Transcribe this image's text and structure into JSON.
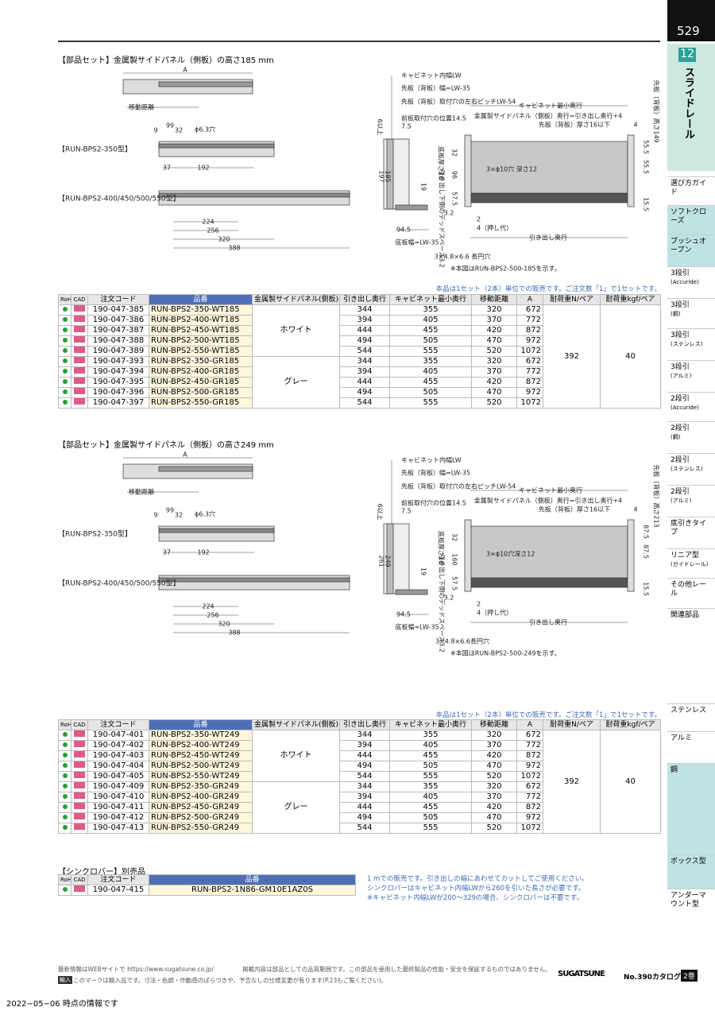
{
  "header": {
    "page_number": "529",
    "chapter": "12",
    "chapter_title": "スライドレール"
  },
  "sidebar": {
    "upper": [
      {
        "label": "選び方ガイド"
      },
      {
        "label": "ソフトクローズ"
      },
      {
        "label": "プッシュオープン"
      },
      {
        "label": "3段引",
        "sub": "(Accuride)"
      },
      {
        "label": "3段引",
        "sub": "(鋼)"
      },
      {
        "label": "3段引",
        "sub": "(ステンレス)"
      },
      {
        "label": "3段引",
        "sub": "(アルミ)"
      },
      {
        "label": "2段引",
        "sub": "(Accuride)"
      },
      {
        "label": "2段引",
        "sub": "(鋼)"
      },
      {
        "label": "2段引",
        "sub": "(ステンレス)"
      },
      {
        "label": "2段引",
        "sub": "(アルミ)"
      },
      {
        "label": "底引きタイプ"
      },
      {
        "label": "リニア型",
        "sub": "(ガイドレール)"
      },
      {
        "label": "その他レール"
      },
      {
        "label": "関連部品"
      }
    ],
    "lower": [
      {
        "label": "ステンレス"
      },
      {
        "label": "アルミ"
      },
      {
        "label": "鋼"
      },
      {
        "label": "ボックス型"
      },
      {
        "label": "アンダーマウント型"
      }
    ]
  },
  "sections": [
    {
      "title": "【部品セット】金属製サイドパネル（側板）の高さ185 mm",
      "drawing_labels": [
        "A",
        "移動距離",
        "9",
        "99",
        "32",
        "ϕ6.3穴",
        "37",
        "192",
        "224",
        "256",
        "320",
        "388",
        "【RUN-BPS2-350型】",
        "【RUN-BPS2-400/450/500/550型】",
        "キャビネット内幅LW",
        "先板（背板）幅=LW-35",
        "先板（背板）取付穴の左右ピッチLW-54",
        "前板取付穴の位置14.5",
        "7.5",
        "6以上",
        "キャビネット最小奥行",
        "金属製サイドパネル（側板）奥行=引き出し奥行+4",
        "先板（背板）厚さ16以下",
        "4",
        "先板（背板）高さ149",
        "55.5",
        "55.5",
        "15.5",
        "3×ϕ10穴 深さ12",
        "底板厚さ16",
        "32",
        "96",
        "57.5",
        "3.2",
        "19",
        "197",
        "185",
        "94.5",
        "底板幅=LW-35",
        "引き出し下側のデッドスペース3.2",
        "2",
        "4（押し代）",
        "引き出し奥行",
        "3×4.8×6.6 長円穴",
        "※本図はRUN-BPS2-500-185を示す。"
      ],
      "sale_note": "本品は1セット（2本）単位での販売です。ご注文数「1」で1セットです。",
      "table": {
        "columns": [
          "RoHS",
          "CAD",
          "注文コード",
          "品番",
          "金属製サイドパネル(側板)の色",
          "引き出し奥行",
          "キャビネット最小奥行",
          "移動距離",
          "A",
          "耐荷重N/ペア",
          "耐荷重kgf/ペア"
        ],
        "colors": [
          "ホワイト",
          "グレー"
        ],
        "load_n": 392,
        "load_kgf": 40,
        "rows": [
          [
            "190-047-385",
            "RUN-BPS2-350-WT185",
            344,
            355,
            320,
            672
          ],
          [
            "190-047-386",
            "RUN-BPS2-400-WT185",
            394,
            405,
            370,
            772
          ],
          [
            "190-047-387",
            "RUN-BPS2-450-WT185",
            444,
            455,
            420,
            872
          ],
          [
            "190-047-388",
            "RUN-BPS2-500-WT185",
            494,
            505,
            470,
            972
          ],
          [
            "190-047-389",
            "RUN-BPS2-550-WT185",
            544,
            555,
            520,
            1072
          ],
          [
            "190-047-393",
            "RUN-BPS2-350-GR185",
            344,
            355,
            320,
            672
          ],
          [
            "190-047-394",
            "RUN-BPS2-400-GR185",
            394,
            405,
            370,
            772
          ],
          [
            "190-047-395",
            "RUN-BPS2-450-GR185",
            444,
            455,
            420,
            872
          ],
          [
            "190-047-396",
            "RUN-BPS2-500-GR185",
            494,
            505,
            470,
            972
          ],
          [
            "190-047-397",
            "RUN-BPS2-550-GR185",
            544,
            555,
            520,
            1072
          ]
        ]
      }
    },
    {
      "title": "【部品セット】金属製サイドパネル（側板）の高さ249 mm",
      "drawing_labels": [
        "A",
        "移動距離",
        "9",
        "99",
        "32",
        "ϕ6.3穴",
        "37",
        "192",
        "224",
        "256",
        "320",
        "388",
        "【RUN-BPS2-350型】",
        "【RUN-BPS2-400/450/500/550型】",
        "キャビネット内幅LW",
        "先板（背板）幅=LW-35",
        "先板（背板）取付穴の左右ピッチLW-54",
        "前板取付穴の位置14.5",
        "7.5",
        "6以上",
        "キャビネット最小奥行",
        "金属製サイドパネル（側板）奥行=引き出し奥行+4",
        "先板（背板）厚さ16以下",
        "4",
        "先板（背板）高さ213",
        "87.5",
        "87.5",
        "15.5",
        "3×ϕ10穴深さ12",
        "底板厚さ16",
        "32",
        "160",
        "57.5",
        "3.2",
        "19",
        "261",
        "249",
        "94.5",
        "底板幅=LW-35",
        "引き出し下側のデッドスペース3.2",
        "2",
        "4（押し代）",
        "引き出し奥行",
        "3×4.8×6.6長円穴",
        "※本図はRUN-BPS2-500-249を示す。"
      ],
      "sale_note": "本品は1セット（2本）単位での販売です。ご注文数「1」で1セットです。",
      "table": {
        "columns": [
          "RoHS",
          "CAD",
          "注文コード",
          "品番",
          "金属製サイドパネル(側板)の色",
          "引き出し奥行",
          "キャビネット最小奥行",
          "移動距離",
          "A",
          "耐荷重N/ペア",
          "耐荷重kgf/ペア"
        ],
        "colors": [
          "ホワイト",
          "グレー"
        ],
        "load_n": 392,
        "load_kgf": 40,
        "rows": [
          [
            "190-047-401",
            "RUN-BPS2-350-WT249",
            344,
            355,
            320,
            672
          ],
          [
            "190-047-402",
            "RUN-BPS2-400-WT249",
            394,
            405,
            370,
            772
          ],
          [
            "190-047-403",
            "RUN-BPS2-450-WT249",
            444,
            455,
            420,
            872
          ],
          [
            "190-047-404",
            "RUN-BPS2-500-WT249",
            494,
            505,
            470,
            972
          ],
          [
            "190-047-405",
            "RUN-BPS2-550-WT249",
            544,
            555,
            520,
            1072
          ],
          [
            "190-047-409",
            "RUN-BPS2-350-GR249",
            344,
            355,
            320,
            672
          ],
          [
            "190-047-410",
            "RUN-BPS2-400-GR249",
            394,
            405,
            370,
            772
          ],
          [
            "190-047-411",
            "RUN-BPS2-450-GR249",
            444,
            455,
            420,
            872
          ],
          [
            "190-047-412",
            "RUN-BPS2-500-GR249",
            494,
            505,
            470,
            972
          ],
          [
            "190-047-413",
            "RUN-BPS2-550-GR249",
            544,
            555,
            520,
            1072
          ]
        ]
      }
    }
  ],
  "synchro": {
    "title": "【シンクロバー】別売品",
    "columns": [
      "RoHS",
      "CAD",
      "注文コード",
      "品番"
    ],
    "row": [
      "190-047-415",
      "RUN-BPS2-1N86-GM10E1AZ0S"
    ],
    "notes": [
      "1 mでの販売です。引き出しの幅にあわせてカットしてご使用ください。",
      "シンクロバーはキャビネット内幅LWから260を引いた長さが必要です。",
      "※キャビネット内幅LWが200～329の場合、シンクロバーは不要です。"
    ]
  },
  "footer": {
    "web": "最新情報はWEBサイトで https://www.sugatsune.co.jp/",
    "disclaimer": "掲載内容は部品としての品質範囲です。この部品を使用した最終製品の性能・安全を保証するものではありません。",
    "import_mark": "輸入",
    "import_note": "このマークは輸入品です。寸法・色調・作動感のばらつきや、予告なしの仕様変更が有ります(P.23もご覧ください)。",
    "logo": "SUGATSUNE",
    "catalog": "No.390カタログ",
    "volume": "2巻",
    "date": "2022−05−06 時点の情報です"
  }
}
